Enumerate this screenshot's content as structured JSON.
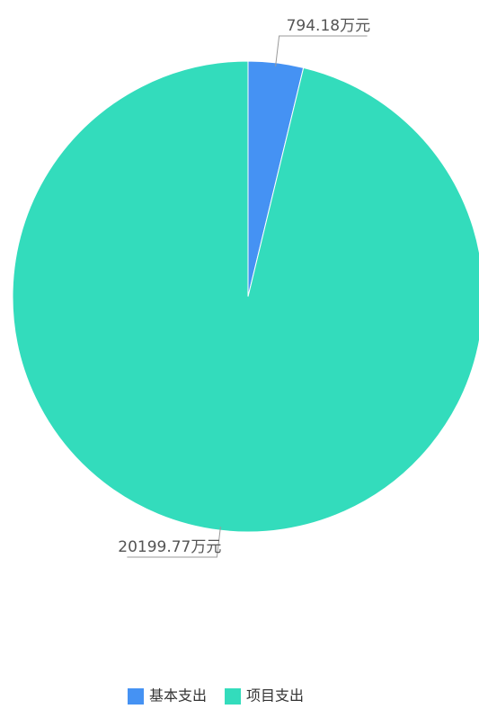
{
  "chart_data": {
    "type": "pie",
    "categories": [
      "基本支出",
      "项目支出"
    ],
    "values": [
      794.18,
      20199.77
    ],
    "value_labels": [
      "794.18万元",
      "20199.77万元"
    ],
    "colors": [
      "#4592f3",
      "#33dcbc"
    ],
    "legend": "bottom"
  }
}
